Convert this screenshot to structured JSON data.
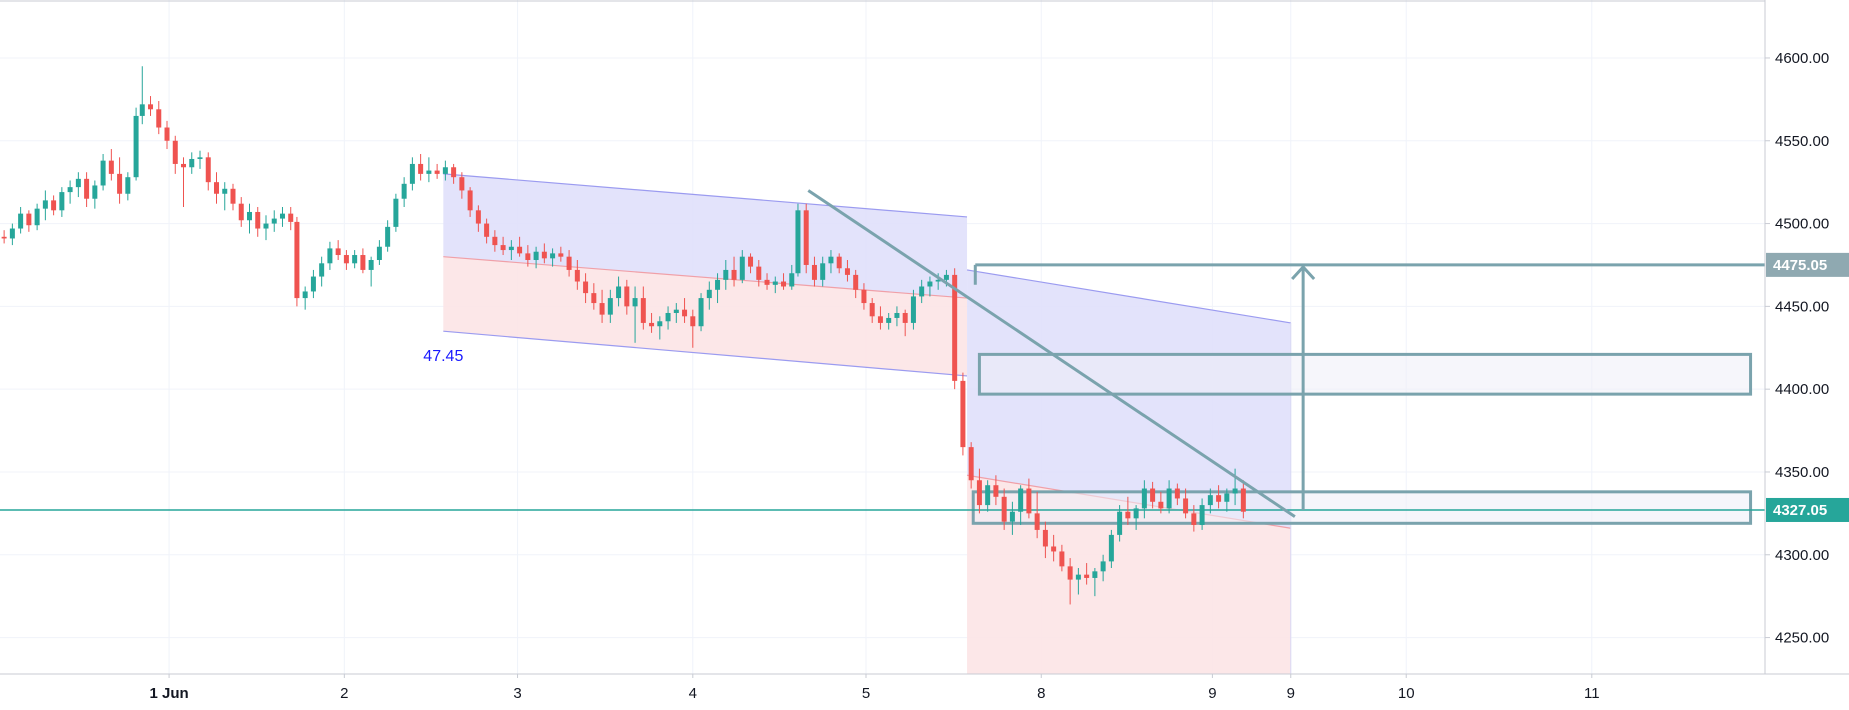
{
  "chart_data": {
    "type": "candlestick",
    "y_axis": {
      "ticks": [
        "4600.00",
        "4550.00",
        "4500.00",
        "4450.00",
        "4400.00",
        "4350.00",
        "4300.00",
        "4250.00"
      ],
      "tick_values": [
        4600,
        4550,
        4500,
        4450,
        4400,
        4350,
        4300,
        4250
      ],
      "ylim": [
        4228,
        4635
      ],
      "position": "right"
    },
    "x_axis": {
      "labels": [
        {
          "text": "1 Jun",
          "t": 8.2,
          "bold": true
        },
        {
          "text": "2",
          "t": 16.7
        },
        {
          "text": "3",
          "t": 25.1
        },
        {
          "text": "4",
          "t": 33.6
        },
        {
          "text": "5",
          "t": 42.0
        },
        {
          "text": "8",
          "t": 50.5
        },
        {
          "text": "9",
          "t": 58.8
        },
        {
          "text": "9",
          "t": 62.6
        },
        {
          "text": "10",
          "t": 68.2
        },
        {
          "text": "11",
          "t": 77.2
        }
      ],
      "xlim": [
        0,
        85.6
      ]
    },
    "grid": true,
    "colors": {
      "up": "#26a69a",
      "down": "#ef5350",
      "channel_upper_fill": "#e0e0fb",
      "channel_lower_fill": "#fce4e6",
      "channel_line": "#9b9bf0",
      "channel_mid_line": "#f0a0a8",
      "drawing": "#7aa3ad",
      "hline": "#26a69a",
      "price_tag_gray": "#8fa9b1",
      "price_tag_teal": "#26a69a",
      "annotation_text": "#1a1aff"
    },
    "candles": [
      [
        0.2,
        4492,
        4496,
        4488,
        4491
      ],
      [
        0.6,
        4491,
        4500,
        4487,
        4497
      ],
      [
        1.0,
        4497,
        4510,
        4494,
        4506
      ],
      [
        1.4,
        4506,
        4508,
        4495,
        4499
      ],
      [
        1.8,
        4499,
        4512,
        4496,
        4509
      ],
      [
        2.2,
        4509,
        4520,
        4502,
        4514
      ],
      [
        2.6,
        4514,
        4517,
        4505,
        4508
      ],
      [
        3.0,
        4508,
        4522,
        4504,
        4519
      ],
      [
        3.4,
        4519,
        4526,
        4512,
        4522
      ],
      [
        3.8,
        4522,
        4531,
        4516,
        4527
      ],
      [
        4.2,
        4527,
        4531,
        4510,
        4515
      ],
      [
        4.6,
        4515,
        4526,
        4509,
        4523
      ],
      [
        5.0,
        4523,
        4542,
        4520,
        4538
      ],
      [
        5.4,
        4538,
        4545,
        4526,
        4530
      ],
      [
        5.8,
        4530,
        4540,
        4512,
        4518
      ],
      [
        6.2,
        4518,
        4531,
        4514,
        4528
      ],
      [
        6.6,
        4528,
        4570,
        4526,
        4565
      ],
      [
        6.9,
        4565,
        4595,
        4560,
        4572
      ],
      [
        7.3,
        4572,
        4577,
        4565,
        4569
      ],
      [
        7.7,
        4569,
        4574,
        4554,
        4558
      ],
      [
        8.1,
        4558,
        4562,
        4545,
        4550
      ],
      [
        8.5,
        4550,
        4553,
        4530,
        4536
      ],
      [
        8.9,
        4536,
        4540,
        4510,
        4534
      ],
      [
        9.3,
        4534,
        4543,
        4530,
        4539
      ],
      [
        9.7,
        4539,
        4544,
        4533,
        4540
      ],
      [
        10.1,
        4540,
        4543,
        4520,
        4525
      ],
      [
        10.5,
        4525,
        4531,
        4512,
        4518
      ],
      [
        10.9,
        4518,
        4525,
        4508,
        4521
      ],
      [
        11.3,
        4521,
        4524,
        4508,
        4512
      ],
      [
        11.7,
        4512,
        4516,
        4498,
        4502
      ],
      [
        12.1,
        4502,
        4512,
        4494,
        4507
      ],
      [
        12.5,
        4507,
        4510,
        4492,
        4497
      ],
      [
        12.9,
        4497,
        4505,
        4490,
        4500
      ],
      [
        13.3,
        4500,
        4508,
        4495,
        4503
      ],
      [
        13.7,
        4503,
        4510,
        4498,
        4506
      ],
      [
        14.1,
        4506,
        4510,
        4496,
        4501
      ],
      [
        14.4,
        4501,
        4504,
        4450,
        4455
      ],
      [
        14.8,
        4455,
        4462,
        4448,
        4459
      ],
      [
        15.2,
        4459,
        4472,
        4455,
        4468
      ],
      [
        15.6,
        4468,
        4480,
        4462,
        4476
      ],
      [
        16.0,
        4476,
        4489,
        4472,
        4485
      ],
      [
        16.4,
        4485,
        4490,
        4478,
        4481
      ],
      [
        16.8,
        4481,
        4484,
        4472,
        4476
      ],
      [
        17.2,
        4476,
        4484,
        4473,
        4481
      ],
      [
        17.6,
        4481,
        4485,
        4470,
        4472
      ],
      [
        18.0,
        4472,
        4480,
        4462,
        4478
      ],
      [
        18.4,
        4478,
        4490,
        4475,
        4486
      ],
      [
        18.8,
        4486,
        4502,
        4483,
        4498
      ],
      [
        19.2,
        4498,
        4518,
        4495,
        4515
      ],
      [
        19.6,
        4515,
        4528,
        4510,
        4524
      ],
      [
        20.0,
        4524,
        4540,
        4520,
        4536
      ],
      [
        20.4,
        4536,
        4542,
        4526,
        4530
      ],
      [
        20.8,
        4530,
        4540,
        4525,
        4532
      ],
      [
        21.2,
        4532,
        4536,
        4527,
        4530
      ],
      [
        21.6,
        4530,
        4538,
        4526,
        4534
      ],
      [
        22.0,
        4534,
        4536,
        4524,
        4528
      ],
      [
        22.4,
        4528,
        4531,
        4515,
        4520
      ],
      [
        22.8,
        4520,
        4522,
        4504,
        4508
      ],
      [
        23.2,
        4508,
        4511,
        4495,
        4500
      ],
      [
        23.6,
        4500,
        4503,
        4488,
        4492
      ],
      [
        24.0,
        4492,
        4496,
        4483,
        4487
      ],
      [
        24.4,
        4487,
        4492,
        4481,
        4484
      ],
      [
        24.8,
        4484,
        4490,
        4478,
        4486
      ],
      [
        25.2,
        4486,
        4492,
        4480,
        4482
      ],
      [
        25.6,
        4482,
        4487,
        4474,
        4478
      ],
      [
        26.0,
        4478,
        4486,
        4473,
        4483
      ],
      [
        26.4,
        4483,
        4488,
        4476,
        4479
      ],
      [
        26.8,
        4479,
        4485,
        4474,
        4482
      ],
      [
        27.2,
        4482,
        4486,
        4477,
        4480
      ],
      [
        27.6,
        4480,
        4484,
        4468,
        4472
      ],
      [
        28.0,
        4472,
        4478,
        4460,
        4465
      ],
      [
        28.4,
        4465,
        4470,
        4452,
        4458
      ],
      [
        28.8,
        4458,
        4464,
        4448,
        4452
      ],
      [
        29.2,
        4452,
        4460,
        4440,
        4445
      ],
      [
        29.6,
        4445,
        4460,
        4440,
        4455
      ],
      [
        30.0,
        4455,
        4468,
        4450,
        4462
      ],
      [
        30.4,
        4462,
        4466,
        4445,
        4450
      ],
      [
        30.8,
        4450,
        4462,
        4428,
        4455
      ],
      [
        31.2,
        4455,
        4462,
        4436,
        4440
      ],
      [
        31.6,
        4440,
        4446,
        4434,
        4438
      ],
      [
        32.0,
        4438,
        4444,
        4430,
        4441
      ],
      [
        32.4,
        4441,
        4450,
        4436,
        4446
      ],
      [
        32.8,
        4446,
        4452,
        4440,
        4448
      ],
      [
        33.2,
        4448,
        4455,
        4440,
        4444
      ],
      [
        33.6,
        4444,
        4448,
        4425,
        4438
      ],
      [
        34.0,
        4438,
        4458,
        4435,
        4455
      ],
      [
        34.4,
        4455,
        4465,
        4448,
        4460
      ],
      [
        34.8,
        4460,
        4470,
        4452,
        4466
      ],
      [
        35.2,
        4466,
        4478,
        4460,
        4472
      ],
      [
        35.6,
        4472,
        4480,
        4462,
        4466
      ],
      [
        36.0,
        4466,
        4484,
        4464,
        4480
      ],
      [
        36.4,
        4480,
        4482,
        4470,
        4474
      ],
      [
        36.8,
        4474,
        4478,
        4462,
        4466
      ],
      [
        37.2,
        4466,
        4470,
        4460,
        4463
      ],
      [
        37.6,
        4463,
        4468,
        4458,
        4465
      ],
      [
        38.0,
        4465,
        4470,
        4460,
        4462
      ],
      [
        38.4,
        4462,
        4475,
        4460,
        4470
      ],
      [
        38.7,
        4470,
        4512,
        4468,
        4508
      ],
      [
        39.1,
        4508,
        4512,
        4470,
        4475
      ],
      [
        39.5,
        4475,
        4480,
        4462,
        4466
      ],
      [
        39.9,
        4466,
        4480,
        4462,
        4476
      ],
      [
        40.3,
        4476,
        4484,
        4470,
        4480
      ],
      [
        40.7,
        4480,
        4482,
        4470,
        4473
      ],
      [
        41.1,
        4473,
        4478,
        4465,
        4469
      ],
      [
        41.5,
        4469,
        4472,
        4455,
        4460
      ],
      [
        41.9,
        4460,
        4464,
        4448,
        4452
      ],
      [
        42.3,
        4452,
        4455,
        4440,
        4444
      ],
      [
        42.7,
        4444,
        4450,
        4436,
        4440
      ],
      [
        43.1,
        4440,
        4446,
        4436,
        4443
      ],
      [
        43.5,
        4443,
        4450,
        4438,
        4446
      ],
      [
        43.9,
        4446,
        4448,
        4432,
        4440
      ],
      [
        44.3,
        4440,
        4460,
        4436,
        4456
      ],
      [
        44.7,
        4456,
        4466,
        4452,
        4462
      ],
      [
        45.1,
        4462,
        4468,
        4456,
        4465
      ],
      [
        45.5,
        4465,
        4470,
        4460,
        4466
      ],
      [
        45.9,
        4466,
        4472,
        4462,
        4469
      ],
      [
        46.3,
        4469,
        4473,
        4400,
        4405
      ],
      [
        46.7,
        4405,
        4410,
        4360,
        4365
      ],
      [
        47.1,
        4365,
        4368,
        4340,
        4345
      ],
      [
        47.5,
        4345,
        4352,
        4325,
        4330
      ],
      [
        47.9,
        4330,
        4345,
        4326,
        4342
      ],
      [
        48.3,
        4342,
        4348,
        4330,
        4335
      ],
      [
        48.7,
        4335,
        4340,
        4315,
        4320
      ],
      [
        49.1,
        4320,
        4332,
        4312,
        4326
      ],
      [
        49.5,
        4326,
        4342,
        4318,
        4340
      ],
      [
        49.9,
        4340,
        4346,
        4322,
        4325
      ],
      [
        50.3,
        4325,
        4338,
        4310,
        4315
      ],
      [
        50.7,
        4315,
        4320,
        4298,
        4305
      ],
      [
        51.1,
        4305,
        4312,
        4296,
        4302
      ],
      [
        51.5,
        4302,
        4306,
        4290,
        4293
      ],
      [
        51.9,
        4293,
        4298,
        4270,
        4285
      ],
      [
        52.3,
        4285,
        4292,
        4276,
        4288
      ],
      [
        52.7,
        4288,
        4295,
        4282,
        4286
      ],
      [
        53.1,
        4286,
        4292,
        4275,
        4290
      ],
      [
        53.5,
        4290,
        4300,
        4284,
        4296
      ],
      [
        53.9,
        4296,
        4315,
        4292,
        4312
      ],
      [
        54.3,
        4312,
        4330,
        4308,
        4326
      ],
      [
        54.7,
        4326,
        4335,
        4318,
        4322
      ],
      [
        55.1,
        4322,
        4330,
        4315,
        4328
      ],
      [
        55.5,
        4328,
        4345,
        4322,
        4340
      ],
      [
        55.9,
        4340,
        4344,
        4328,
        4332
      ],
      [
        56.3,
        4332,
        4338,
        4325,
        4328
      ],
      [
        56.7,
        4328,
        4345,
        4325,
        4340
      ],
      [
        57.1,
        4340,
        4343,
        4330,
        4334
      ],
      [
        57.5,
        4334,
        4340,
        4322,
        4325
      ],
      [
        57.9,
        4325,
        4330,
        4314,
        4318
      ],
      [
        58.3,
        4318,
        4334,
        4315,
        4330
      ],
      [
        58.7,
        4330,
        4340,
        4325,
        4336
      ],
      [
        59.1,
        4336,
        4342,
        4328,
        4332
      ],
      [
        59.5,
        4332,
        4340,
        4326,
        4337
      ],
      [
        59.9,
        4337,
        4352,
        4330,
        4340
      ],
      [
        60.3,
        4340,
        4345,
        4322,
        4326
      ]
    ],
    "regression_channel": {
      "t_start": 21.5,
      "t_end": 46.9,
      "upper": [
        4530,
        4504
      ],
      "mid": [
        4480,
        4455
      ],
      "lower": [
        4435,
        4408
      ],
      "label": "47.45"
    },
    "regression_channel_2": {
      "t_start": 46.9,
      "t_end": 62.6,
      "upper": [
        4472,
        4440
      ],
      "mid": [
        4348,
        4316
      ],
      "lower": [
        4228,
        4228
      ]
    },
    "trend_line": {
      "t1": 39.2,
      "v1": 4520,
      "t2": 62.8,
      "v2": 4323
    },
    "long_arrow": {
      "t": 63.2,
      "v_start": 4327,
      "v_end": 4475
    },
    "zones": [
      {
        "t_start": 47.5,
        "t_end": 84.9,
        "v_top": 4421,
        "v_bottom": 4397
      },
      {
        "t_start": 47.2,
        "t_end": 84.9,
        "v_top": 4338,
        "v_bottom": 4319
      }
    ],
    "level_line_475": {
      "t_start": 47.3,
      "value": 4475.05
    },
    "hline": {
      "value": 4327.05
    },
    "price_tags": [
      {
        "text": "4475.05",
        "value": 4475.05,
        "style": "gray"
      },
      {
        "text": "4327.05",
        "value": 4327.05,
        "style": "teal"
      }
    ]
  }
}
